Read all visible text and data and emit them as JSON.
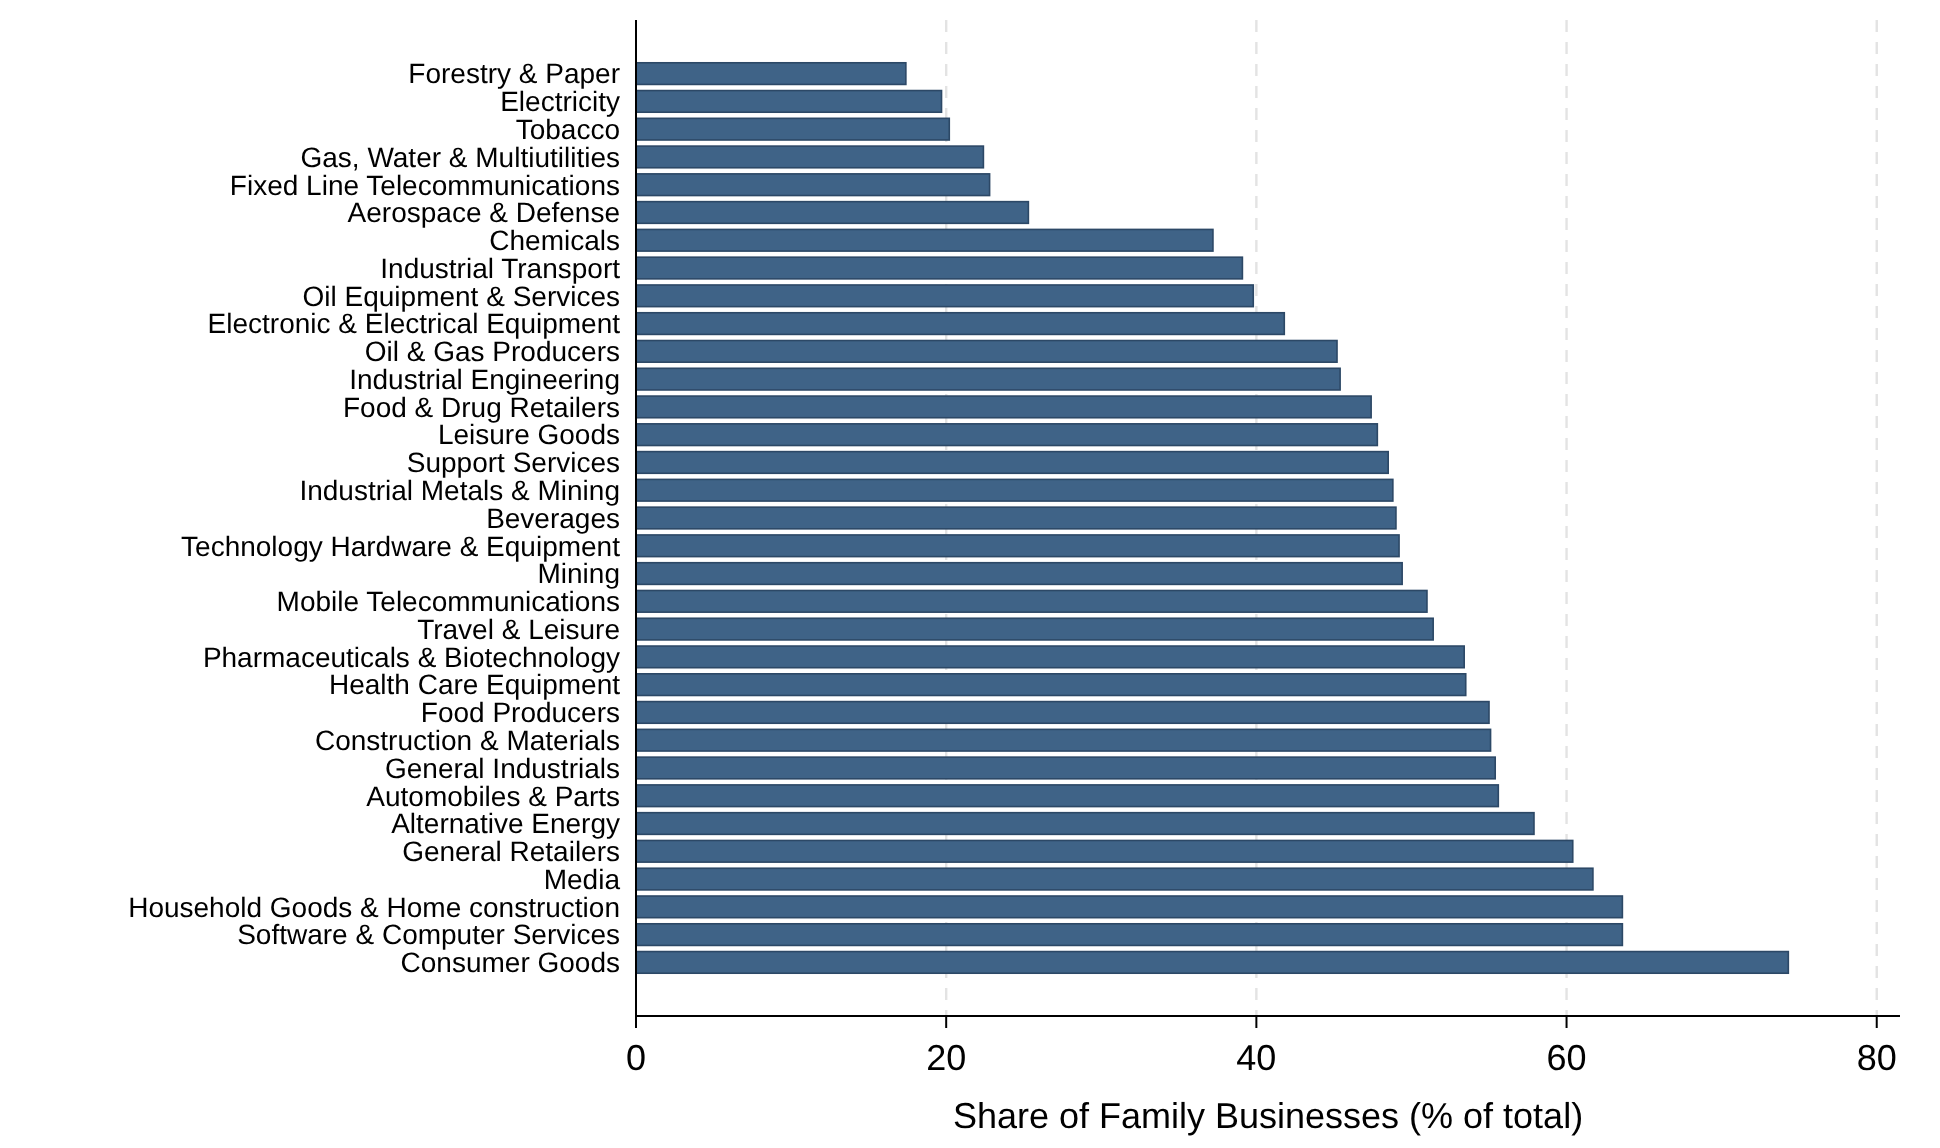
{
  "chart_data": {
    "type": "bar",
    "orientation": "horizontal",
    "xlabel": "Share of Family Businesses (% of total)",
    "categories": [
      "Forestry & Paper",
      "Electricity",
      "Tobacco",
      "Gas, Water & Multiutilities",
      "Fixed Line Telecommunications",
      "Aerospace & Defense",
      "Chemicals",
      "Industrial Transport",
      "Oil Equipment & Services",
      "Electronic & Electrical Equipment",
      "Oil & Gas Producers",
      "Industrial Engineering",
      "Food & Drug Retailers",
      "Leisure Goods",
      "Support Services",
      "Industrial Metals & Mining",
      "Beverages",
      "Technology Hardware & Equipment",
      "Mining",
      "Mobile Telecommunications",
      "Travel & Leisure",
      "Pharmaceuticals & Biotechnology",
      "Health Care Equipment",
      "Food Producers",
      "Construction & Materials",
      "General Industrials",
      "Automobiles & Parts",
      "Alternative Energy",
      "General Retailers",
      "Media",
      "Household Goods & Home construction",
      "Software & Computer Services",
      "Consumer Goods"
    ],
    "values": [
      17.4,
      19.7,
      20.2,
      22.4,
      22.8,
      25.3,
      37.2,
      39.1,
      39.8,
      41.8,
      45.2,
      45.4,
      47.4,
      47.8,
      48.5,
      48.8,
      49.0,
      49.2,
      49.4,
      51.0,
      51.4,
      53.4,
      53.5,
      55.0,
      55.1,
      55.4,
      55.6,
      57.9,
      60.4,
      61.7,
      63.6,
      63.6,
      74.3
    ],
    "color": "#3f6387",
    "xlim": [
      0,
      81.5
    ],
    "xticks": [
      0,
      20,
      40,
      60,
      80
    ],
    "grid": "x"
  }
}
